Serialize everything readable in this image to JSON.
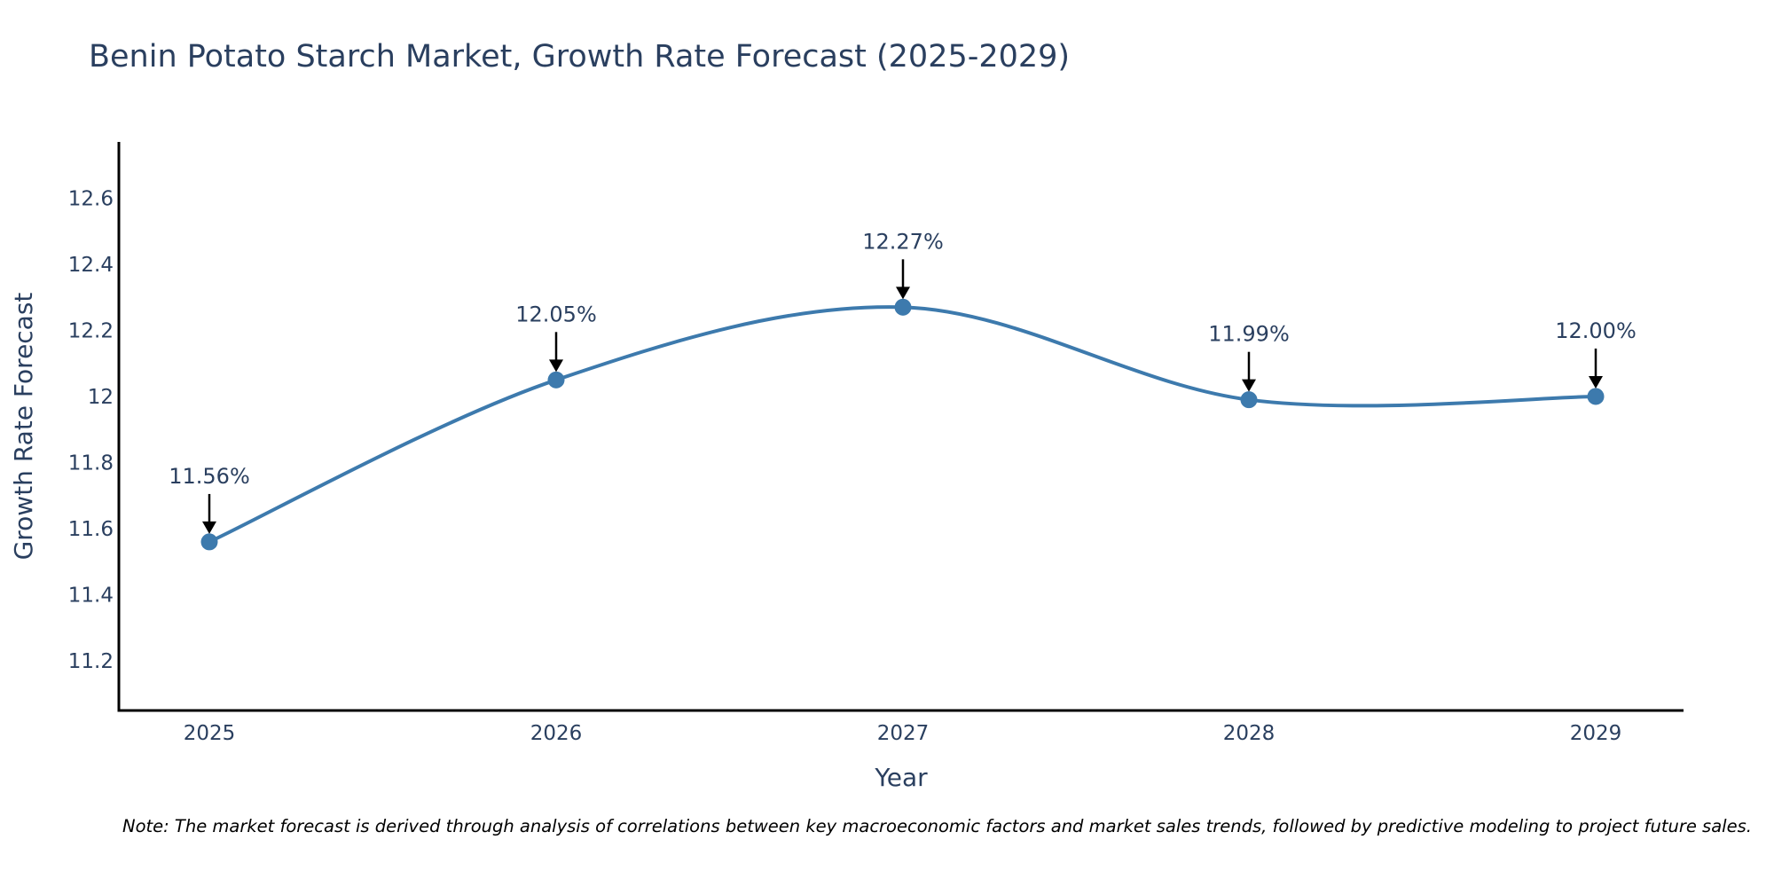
{
  "chart_data": {
    "type": "line",
    "title": "Benin Potato Starch Market, Growth Rate Forecast (2025-2029)",
    "xlabel": "Year",
    "ylabel": "Growth Rate Forecast",
    "categories": [
      "2025",
      "2026",
      "2027",
      "2028",
      "2029"
    ],
    "series": [
      {
        "name": "Growth Rate Forecast",
        "values": [
          11.56,
          12.05,
          12.27,
          11.99,
          12.0
        ],
        "labels": [
          "11.56%",
          "12.05%",
          "12.27%",
          "11.99%",
          "12.00%"
        ]
      }
    ],
    "ylim": [
      11.05,
      12.77
    ],
    "yticks": [
      11.2,
      11.4,
      11.6,
      11.8,
      12.0,
      12.2,
      12.4,
      12.6
    ],
    "ytick_labels": [
      "11.2",
      "11.4",
      "11.6",
      "11.8",
      "12",
      "12.2",
      "12.4",
      "12.6"
    ],
    "grid": false,
    "line_shape": "spline",
    "line_color": "#3d7aad",
    "marker_color": "#3d7aad",
    "note": "Note: The market forecast is derived through analysis of correlations between key macroeconomic factors and market sales trends, followed by predictive modeling to project future sales."
  }
}
